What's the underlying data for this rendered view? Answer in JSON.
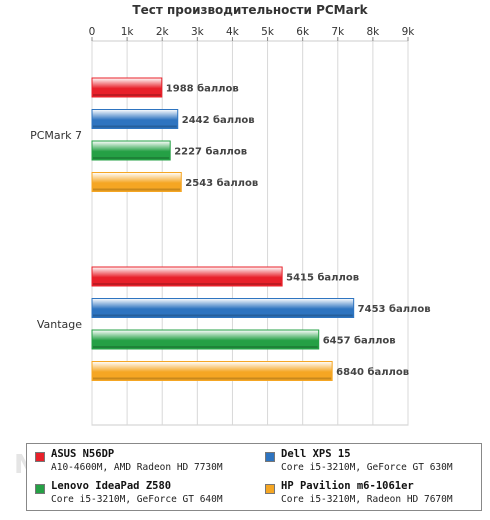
{
  "chart_data": {
    "type": "bar",
    "orientation": "horizontal",
    "title": "Тест производительности PCMark",
    "xlim": [
      0,
      9000
    ],
    "x_ticks": [
      "0",
      "1k",
      "2k",
      "3k",
      "4k",
      "5k",
      "6k",
      "7k",
      "8k",
      "9k"
    ],
    "grid": true,
    "categories": [
      "PCMark 7",
      "Vantage"
    ],
    "unit_suffix": "баллов",
    "series": [
      {
        "name": "ASUS N56DP",
        "spec": "A10-4600M, AMD Radeon HD 7730M",
        "color": "#e8202a",
        "values": [
          1988,
          5415
        ]
      },
      {
        "name": "Dell XPS 15",
        "spec": "Core i5-3210M, GeForce GT 630M",
        "color": "#2e74c0",
        "values": [
          2442,
          7453
        ]
      },
      {
        "name": "Lenovo IdeaPad Z580",
        "spec": "Core i5-3210M, GeForce GT 640M",
        "color": "#25a045",
        "values": [
          2227,
          6457
        ]
      },
      {
        "name": "HP Pavilion m6-1061er",
        "spec": "Core i5-3210M, Radeon HD 7670M",
        "color": "#f5a623",
        "values": [
          2543,
          6840
        ]
      }
    ],
    "data_labels": [
      [
        "1988 баллов",
        "5415 баллов"
      ],
      [
        "2442 баллов",
        "7453 баллов"
      ],
      [
        "2227 баллов",
        "6457 баллов"
      ],
      [
        "2543 баллов",
        "6840 баллов"
      ]
    ],
    "legend_position": "bottom"
  },
  "watermark": "NOTEBOOK"
}
